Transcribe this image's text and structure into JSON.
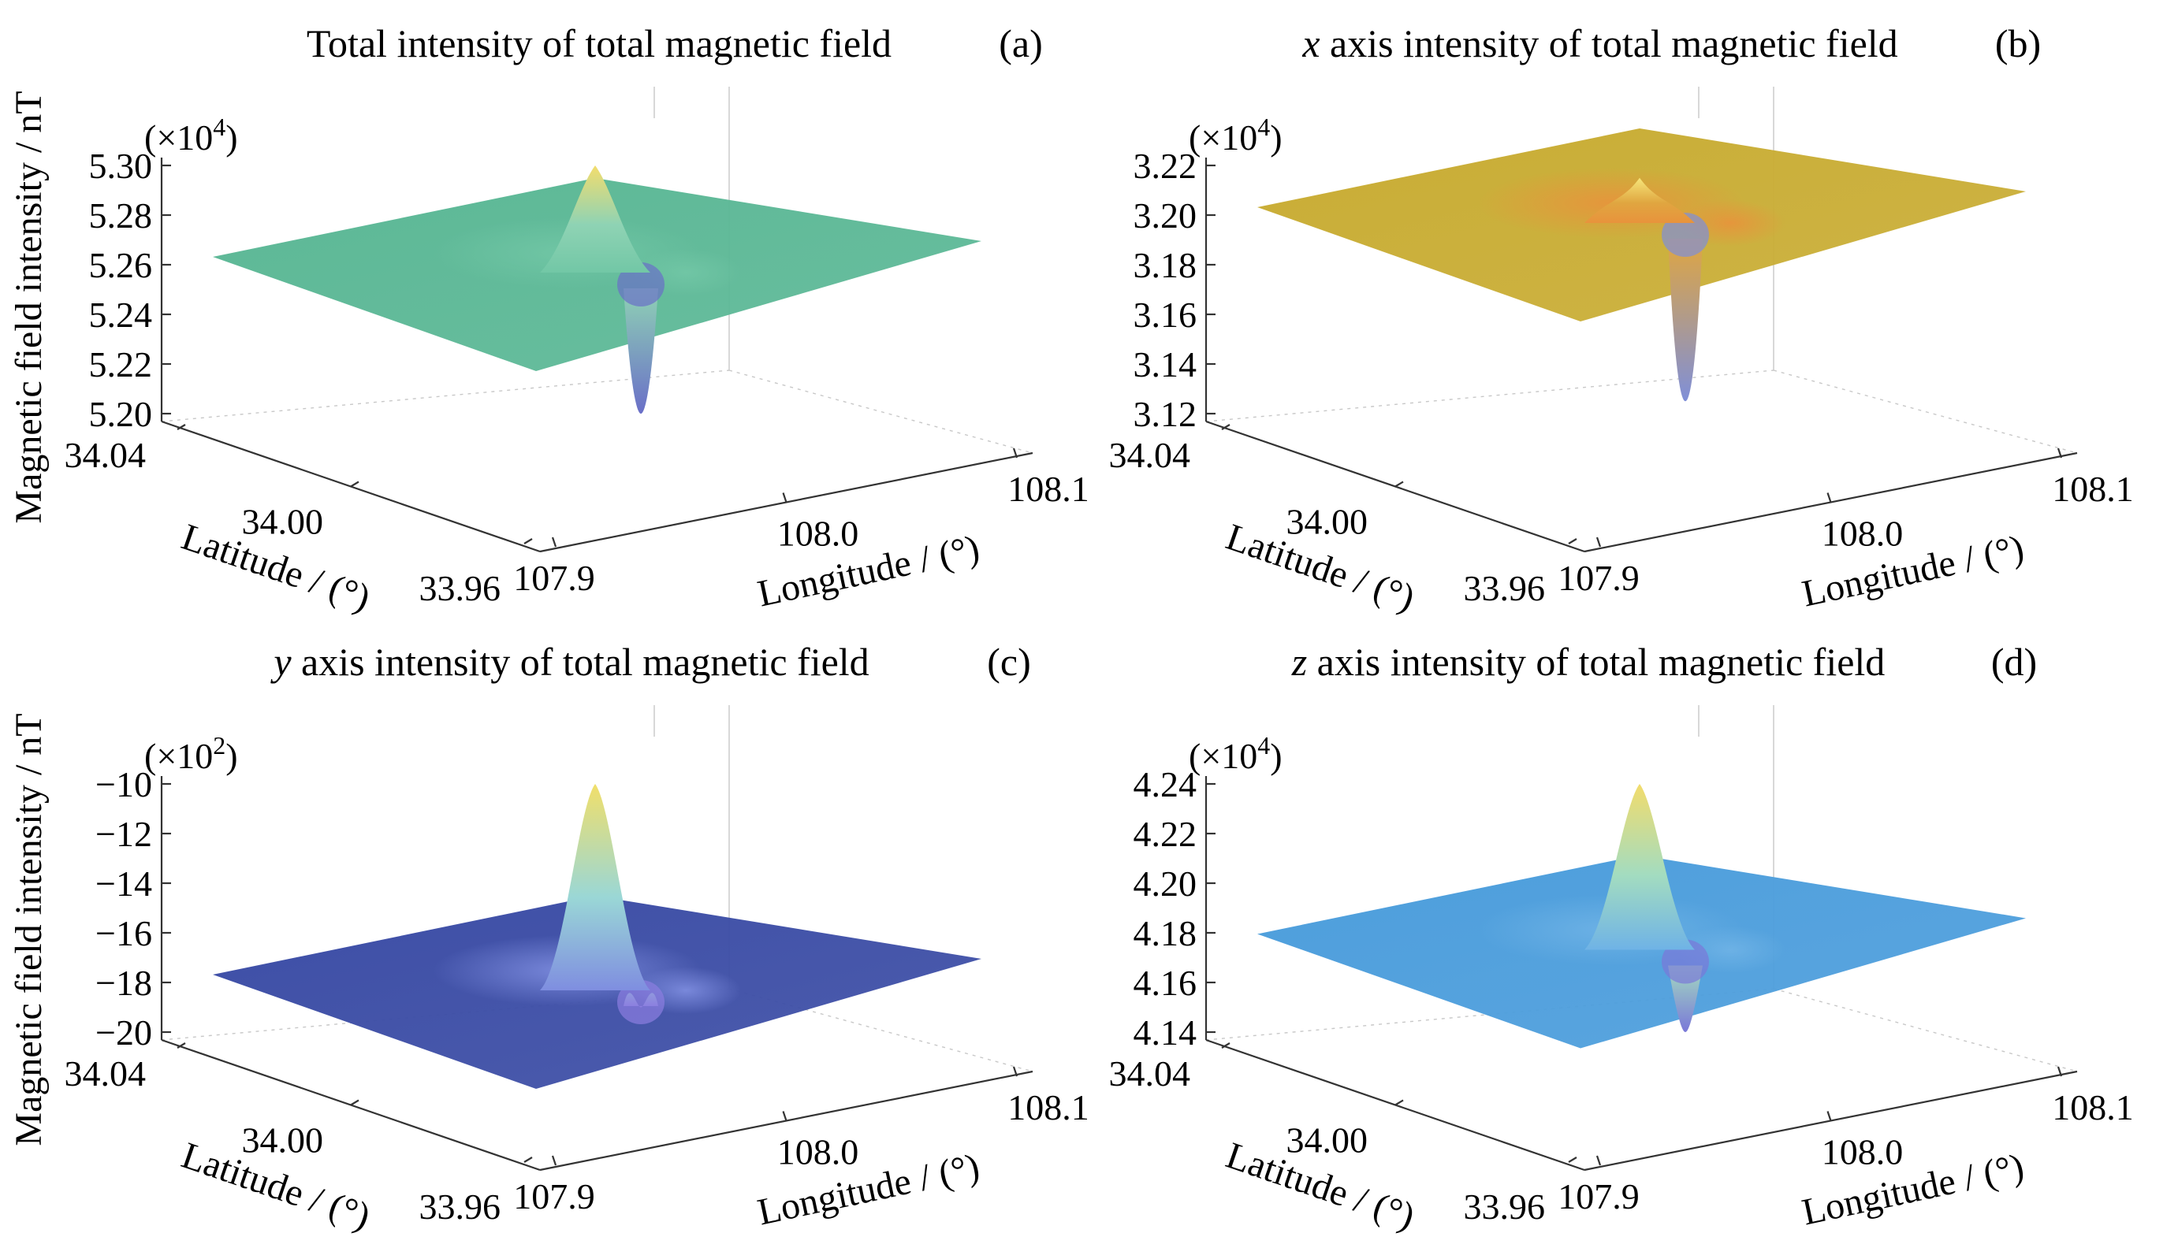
{
  "ylabel_shared": "Magnetic field intensity / nT",
  "chart_data": [
    {
      "id": "a",
      "type": "surface",
      "title": "Total intensity of total magnetic field",
      "panel_label": "(a)",
      "multiplier_label": "(×10",
      "multiplier_exp": "4",
      "multiplier_close": ")",
      "zticks": [
        "5.20",
        "5.22",
        "5.24",
        "5.26",
        "5.28",
        "5.30"
      ],
      "zlim": [
        5.2,
        5.3
      ],
      "latticks": [
        "34.04",
        "34.00",
        "33.96"
      ],
      "lonticks": [
        "107.9",
        "108.0",
        "108.1"
      ],
      "xlabel": "Longitude / (°)",
      "ylabel": "Latitude / (°)",
      "plane_level": 5.26,
      "peak": 5.3,
      "trough": 5.2,
      "colors": {
        "plane": "#5cb896",
        "peak": "#f3dd6d",
        "mid": "#8fd3b4",
        "trough": "#6a6fc8",
        "halo": "#72c7a6"
      }
    },
    {
      "id": "b",
      "type": "surface",
      "title": "x axis intensity of total magnetic field",
      "title_italic": "x",
      "title_rest": " axis intensity of total magnetic field",
      "panel_label": "(b)",
      "multiplier_label": "(×10",
      "multiplier_exp": "4",
      "multiplier_close": ")",
      "zticks": [
        "3.12",
        "3.14",
        "3.16",
        "3.18",
        "3.20",
        "3.22"
      ],
      "zlim": [
        3.12,
        3.22
      ],
      "latticks": [
        "34.04",
        "34.00",
        "33.96"
      ],
      "lonticks": [
        "107.9",
        "108.0",
        "108.1"
      ],
      "xlabel": "Longitude / (°)",
      "ylabel": "Latitude / (°)",
      "plane_level": 3.2,
      "peak": 3.215,
      "trough": 3.125,
      "colors": {
        "plane": "#c9ad35",
        "peak": "#f6e67a",
        "mid": "#e0a640",
        "trough": "#7f8fd8",
        "halo": "#e8933c"
      }
    },
    {
      "id": "c",
      "type": "surface",
      "title": "y axis intensity of total magnetic field",
      "title_italic": "y",
      "title_rest": " axis intensity of total magnetic field",
      "panel_label": "(c)",
      "multiplier_label": "(×10",
      "multiplier_exp": "2",
      "multiplier_close": ")",
      "zticks": [
        "−20",
        "−18",
        "−16",
        "−14",
        "−12",
        "−10"
      ],
      "zlim": [
        -20,
        -10
      ],
      "latticks": [
        "34.04",
        "34.00",
        "33.96"
      ],
      "lonticks": [
        "107.9",
        "108.0",
        "108.1"
      ],
      "xlabel": "Longitude / (°)",
      "ylabel": "Latitude / (°)",
      "plane_level": -18,
      "peak": -10,
      "trough": -19,
      "colors": {
        "plane": "#3d4ea6",
        "peak": "#f1df6a",
        "mid": "#9ad7d6",
        "trough": "#8c7de0",
        "halo": "#7f8ee0"
      }
    },
    {
      "id": "d",
      "type": "surface",
      "title": "z axis intensity of total magnetic field",
      "title_italic": "z",
      "title_rest": " axis intensity of total magnetic field",
      "panel_label": "(d)",
      "multiplier_label": "(×10",
      "multiplier_exp": "4",
      "multiplier_close": ")",
      "zticks": [
        "4.14",
        "4.16",
        "4.18",
        "4.20",
        "4.22",
        "4.24"
      ],
      "zlim": [
        4.13,
        4.24
      ],
      "latticks": [
        "34.04",
        "34.00",
        "33.96"
      ],
      "lonticks": [
        "107.9",
        "108.0",
        "108.1"
      ],
      "xlabel": "Longitude / (°)",
      "ylabel": "Latitude / (°)",
      "plane_level": 4.17,
      "peak": 4.24,
      "trough": 4.13,
      "colors": {
        "plane": "#4d9edc",
        "peak": "#f2dc6c",
        "mid": "#a3dcc0",
        "trough": "#7a78d8",
        "halo": "#6fb3e6"
      }
    }
  ]
}
